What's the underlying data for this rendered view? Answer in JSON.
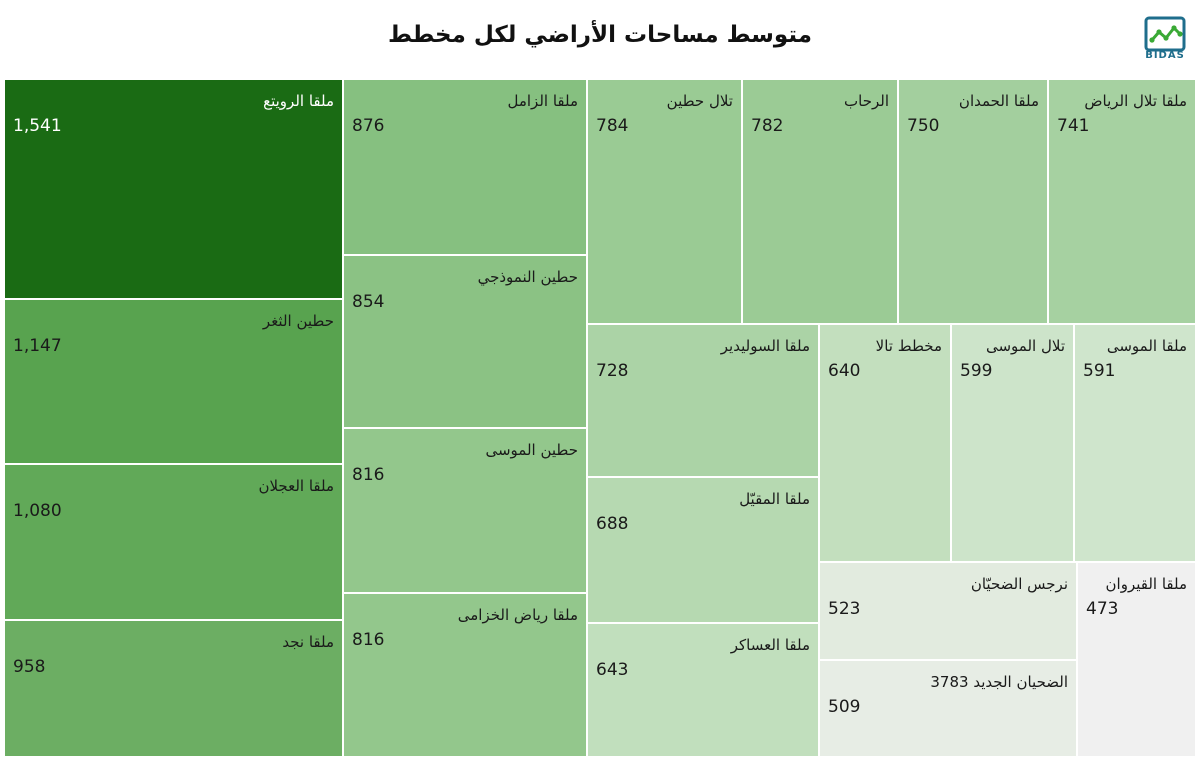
{
  "chart_data": {
    "type": "treemap",
    "title": "متوسط مساحات الأراضي لكل مخطط",
    "items": [
      {
        "label": "ملقا الرويتع",
        "value": 1541,
        "display": "1,541",
        "color": "#1a6b14"
      },
      {
        "label": "حطين الثغر",
        "value": 1147,
        "display": "1,147",
        "color": "#58a34f"
      },
      {
        "label": "ملقا العجلان",
        "value": 1080,
        "display": "1,080",
        "color": "#61a958"
      },
      {
        "label": "ملقا نجد",
        "value": 958,
        "display": "958",
        "color": "#6cae63"
      },
      {
        "label": "ملقا الزامل",
        "value": 876,
        "display": "876",
        "color": "#86c080"
      },
      {
        "label": "حطين النموذجي",
        "value": 854,
        "display": "854",
        "color": "#8bc284"
      },
      {
        "label": "حطين الموسى",
        "value": 816,
        "display": "816",
        "color": "#93c78c"
      },
      {
        "label": "ملقا رياض الخزامى",
        "value": 816,
        "display": "816",
        "color": "#93c78c"
      },
      {
        "label": "تلال حطين",
        "value": 784,
        "display": "784",
        "color": "#9acb94"
      },
      {
        "label": "الرحاب",
        "value": 782,
        "display": "782",
        "color": "#9bcb95"
      },
      {
        "label": "ملقا الحمدان",
        "value": 750,
        "display": "750",
        "color": "#a3cf9e"
      },
      {
        "label": "ملقا تلال الرياض",
        "value": 741,
        "display": "741",
        "color": "#a6d1a1"
      },
      {
        "label": "ملقا السوليدير",
        "value": 728,
        "display": "728",
        "color": "#abd3a6"
      },
      {
        "label": "ملقا المقيّل",
        "value": 688,
        "display": "688",
        "color": "#b6d9b1"
      },
      {
        "label": "ملقا العساكر",
        "value": 643,
        "display": "643",
        "color": "#c1dfbd"
      },
      {
        "label": "مخطط تالا",
        "value": 640,
        "display": "640",
        "color": "#c3dfbe"
      },
      {
        "label": "تلال الموسى",
        "value": 599,
        "display": "599",
        "color": "#cde4ca"
      },
      {
        "label": "ملقا الموسى",
        "value": 591,
        "display": "591",
        "color": "#cfe5cc"
      },
      {
        "label": "نرجس الضحيّان",
        "value": 523,
        "display": "523",
        "color": "#e2ebdf"
      },
      {
        "label": "الضحيان الجديد 3783",
        "value": 509,
        "display": "509",
        "color": "#e7ede5"
      },
      {
        "label": "ملقا القيروان",
        "value": 473,
        "display": "473",
        "color": "#f0f0f0"
      }
    ]
  },
  "brand": {
    "name": "BIDAS",
    "logo_icon": "line-chart-icon",
    "logo_color": "#1f6e8c",
    "accent": "#3aa935"
  }
}
